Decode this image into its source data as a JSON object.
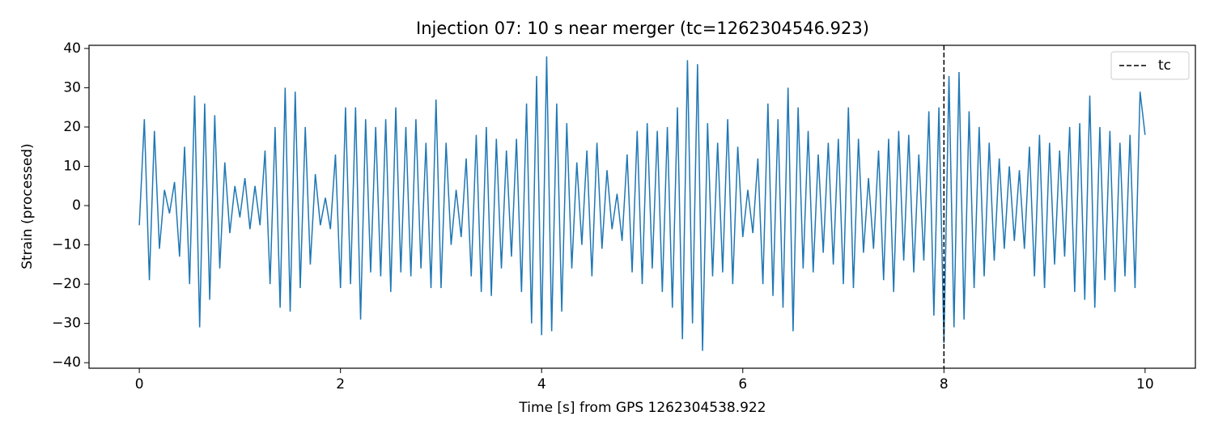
{
  "chart_data": {
    "type": "line",
    "title": "Injection 07: 10 s near merger (tc=1262304546.923)",
    "xlabel": "Time [s] from GPS 1262304538.922",
    "ylabel": "Strain (processed)",
    "color": "#1f77b4",
    "x": [
      0,
      0.05,
      0.1,
      0.15,
      0.2,
      0.25,
      0.3,
      0.35,
      0.4,
      0.45,
      0.5,
      0.55,
      0.6,
      0.65,
      0.7,
      0.75,
      0.8,
      0.85,
      0.9,
      0.95,
      1,
      1.05,
      1.1,
      1.15,
      1.2,
      1.25,
      1.3,
      1.35,
      1.4,
      1.45,
      1.5,
      1.55,
      1.6,
      1.65,
      1.7,
      1.75,
      1.8,
      1.85,
      1.9,
      1.95,
      2,
      2.05,
      2.1,
      2.15,
      2.2,
      2.25,
      2.3,
      2.35,
      2.4,
      2.45,
      2.5,
      2.55,
      2.6,
      2.65,
      2.7,
      2.75,
      2.8,
      2.85,
      2.9,
      2.95,
      3,
      3.05,
      3.1,
      3.15,
      3.2,
      3.25,
      3.3,
      3.35,
      3.4,
      3.45,
      3.5,
      3.55,
      3.6,
      3.65,
      3.7,
      3.75,
      3.8,
      3.85,
      3.9,
      3.95,
      4,
      4.05,
      4.1,
      4.15,
      4.2,
      4.25,
      4.3,
      4.35,
      4.4,
      4.45,
      4.5,
      4.55,
      4.6,
      4.65,
      4.7,
      4.75,
      4.8,
      4.85,
      4.9,
      4.95,
      5,
      5.05,
      5.1,
      5.15,
      5.2,
      5.25,
      5.3,
      5.35,
      5.4,
      5.45,
      5.5,
      5.55,
      5.6,
      5.65,
      5.7,
      5.75,
      5.8,
      5.85,
      5.9,
      5.95,
      6,
      6.05,
      6.1,
      6.15,
      6.2,
      6.25,
      6.3,
      6.35,
      6.4,
      6.45,
      6.5,
      6.55,
      6.6,
      6.65,
      6.7,
      6.75,
      6.8,
      6.85,
      6.9,
      6.95,
      7,
      7.05,
      7.1,
      7.15,
      7.2,
      7.25,
      7.3,
      7.35,
      7.4,
      7.45,
      7.5,
      7.55,
      7.6,
      7.65,
      7.7,
      7.75,
      7.8,
      7.85,
      7.9,
      7.95,
      8,
      8.05,
      8.1,
      8.15,
      8.2,
      8.25,
      8.3,
      8.35,
      8.4,
      8.45,
      8.5,
      8.55,
      8.6,
      8.65,
      8.7,
      8.75,
      8.8,
      8.85,
      8.9,
      8.95,
      9,
      9.05,
      9.1,
      9.15,
      9.2,
      9.25,
      9.3,
      9.35,
      9.4,
      9.45,
      9.5,
      9.55,
      9.6,
      9.65,
      9.7,
      9.75,
      9.8,
      9.85,
      9.9,
      9.95,
      10
    ],
    "values": [
      -5,
      22,
      -19,
      19,
      -11,
      4,
      -2,
      6,
      -13,
      15,
      -20,
      28,
      -31,
      26,
      -24,
      23,
      -16,
      11,
      -7,
      5,
      -3,
      7,
      -6,
      5,
      -5,
      14,
      -20,
      20,
      -26,
      30,
      -27,
      29,
      -21,
      20,
      -15,
      8,
      -5,
      2,
      -6,
      13,
      -21,
      25,
      -20,
      25,
      -29,
      22,
      -17,
      20,
      -18,
      22,
      -22,
      25,
      -17,
      20,
      -18,
      22,
      -16,
      16,
      -21,
      27,
      -21,
      16,
      -10,
      4,
      -8,
      12,
      -18,
      18,
      -22,
      20,
      -23,
      17,
      -16,
      14,
      -13,
      17,
      -22,
      26,
      -30,
      33,
      -33,
      38,
      -32,
      26,
      -27,
      21,
      -16,
      11,
      -10,
      14,
      -18,
      16,
      -11,
      9,
      -6,
      3,
      -9,
      13,
      -17,
      19,
      -20,
      21,
      -16,
      19,
      -22,
      20,
      -26,
      25,
      -34,
      37,
      -30,
      36,
      -37,
      21,
      -18,
      16,
      -17,
      22,
      -20,
      15,
      -8,
      4,
      -7,
      12,
      -20,
      26,
      -23,
      22,
      -26,
      30,
      -32,
      25,
      -16,
      19,
      -17,
      13,
      -12,
      16,
      -15,
      17,
      -20,
      25,
      -21,
      17,
      -12,
      7,
      -11,
      14,
      -19,
      17,
      -22,
      19,
      -14,
      18,
      -17,
      13,
      -14,
      24,
      -28,
      25,
      -35,
      33,
      -31,
      34,
      -29,
      24,
      -21,
      20,
      -18,
      16,
      -14,
      12,
      -11,
      10,
      -9,
      9,
      -11,
      15,
      -18,
      18,
      -21,
      16,
      -15,
      14,
      -13,
      20,
      -22,
      21,
      -24,
      28,
      -26,
      20,
      -19,
      19,
      -22,
      16,
      -18,
      18,
      -21,
      29,
      18
    ],
    "xlim": [
      -0.5,
      10.5
    ],
    "ylim": [
      -41.4,
      40.8
    ],
    "xticks": [
      0,
      2,
      4,
      6,
      8,
      10
    ],
    "yticks": [
      {
        "value": -40,
        "label": "−40"
      },
      {
        "value": -30,
        "label": "−30"
      },
      {
        "value": -20,
        "label": "−20"
      },
      {
        "value": -10,
        "label": "−10"
      },
      0,
      10,
      20,
      30,
      40
    ],
    "vline": {
      "x": 8,
      "name": "tc",
      "color": "#000000",
      "dash": true
    },
    "legend": "upper right"
  }
}
